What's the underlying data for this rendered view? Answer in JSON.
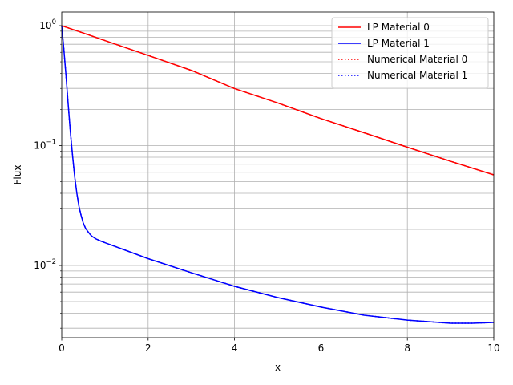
{
  "chart_data": {
    "type": "line",
    "title": "",
    "xlabel": "x",
    "ylabel": "Flux",
    "xlim": [
      0,
      10
    ],
    "ylim": [
      0.0025,
      1.3
    ],
    "yscale": "log",
    "grid": true,
    "grid_minor_y": true,
    "legend_position": "top-right",
    "x_ticks": [
      {
        "value": 0,
        "label": "0"
      },
      {
        "value": 2,
        "label": "2"
      },
      {
        "value": 4,
        "label": "4"
      },
      {
        "value": 6,
        "label": "6"
      },
      {
        "value": 8,
        "label": "8"
      },
      {
        "value": 10,
        "label": "10"
      }
    ],
    "y_major_ticks": [
      {
        "value": 1,
        "base": "10",
        "exp": "0"
      },
      {
        "value": 0.1,
        "base": "10",
        "exp": "−1"
      },
      {
        "value": 0.01,
        "base": "10",
        "exp": "−2"
      }
    ],
    "y_minor_ticks": [
      0.003,
      0.004,
      0.005,
      0.006,
      0.007,
      0.008,
      0.009,
      0.02,
      0.03,
      0.04,
      0.05,
      0.06,
      0.07,
      0.08,
      0.09,
      0.2,
      0.3,
      0.4,
      0.5,
      0.6,
      0.7,
      0.8,
      0.9
    ],
    "series": [
      {
        "name": "LP Material 0",
        "color": "#ff0000",
        "dash": "solid",
        "x": [
          0,
          0.5,
          1,
          2,
          3,
          4,
          5,
          6,
          7,
          8,
          9,
          10
        ],
        "y": [
          1.0,
          0.868,
          0.752,
          0.565,
          0.424,
          0.299,
          0.227,
          0.168,
          0.128,
          0.097,
          0.074,
          0.057
        ]
      },
      {
        "name": "LP Material 1",
        "color": "#0000ff",
        "dash": "solid",
        "x": [
          0,
          0.05,
          0.1,
          0.15,
          0.2,
          0.25,
          0.3,
          0.35,
          0.4,
          0.45,
          0.5,
          0.55,
          0.6,
          0.65,
          0.7,
          0.8,
          0.9,
          1,
          1.5,
          2,
          3,
          4,
          5,
          6,
          7,
          8,
          9,
          9.5,
          10
        ],
        "y": [
          1.0,
          0.63,
          0.38,
          0.22,
          0.13,
          0.083,
          0.055,
          0.04,
          0.031,
          0.026,
          0.0225,
          0.0205,
          0.0193,
          0.0183,
          0.0175,
          0.0166,
          0.016,
          0.0155,
          0.0133,
          0.0114,
          0.0087,
          0.0067,
          0.0054,
          0.0045,
          0.00385,
          0.0035,
          0.0033,
          0.0033,
          0.00335
        ]
      },
      {
        "name": "Numerical Material 0",
        "color": "#ff0000",
        "dash": "dotted",
        "x": [
          0,
          0.5,
          1,
          2,
          3,
          4,
          5,
          6,
          7,
          8,
          9,
          10
        ],
        "y": [
          1.0,
          0.868,
          0.752,
          0.565,
          0.424,
          0.299,
          0.227,
          0.168,
          0.128,
          0.097,
          0.074,
          0.057
        ]
      },
      {
        "name": "Numerical Material 1",
        "color": "#0000ff",
        "dash": "dotted",
        "x": [
          0,
          0.05,
          0.1,
          0.15,
          0.2,
          0.25,
          0.3,
          0.35,
          0.4,
          0.45,
          0.5,
          0.55,
          0.6,
          0.65,
          0.7,
          0.8,
          0.9,
          1,
          1.5,
          2,
          3,
          4,
          5,
          6,
          7,
          8,
          9,
          9.5,
          10
        ],
        "y": [
          1.0,
          0.63,
          0.38,
          0.22,
          0.13,
          0.083,
          0.055,
          0.04,
          0.031,
          0.026,
          0.0225,
          0.0205,
          0.0193,
          0.0183,
          0.0175,
          0.0166,
          0.016,
          0.0155,
          0.0133,
          0.0114,
          0.0087,
          0.0067,
          0.0054,
          0.0045,
          0.00385,
          0.0035,
          0.0033,
          0.0033,
          0.00335
        ]
      }
    ]
  }
}
